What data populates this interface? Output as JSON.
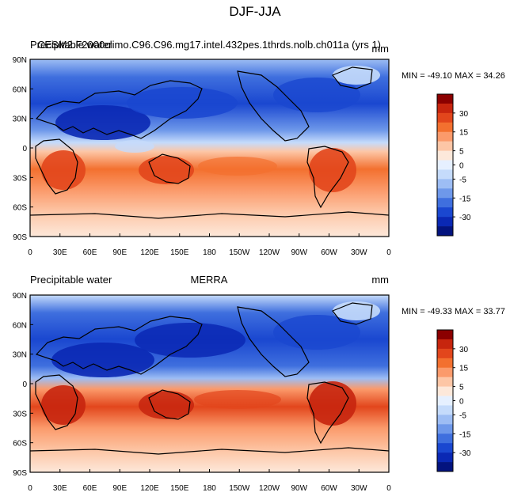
{
  "figure": {
    "title": "DJF-JJA",
    "variable_label": "Precipitable water"
  },
  "chart_data": [
    {
      "type": "heatmap",
      "panel": "top",
      "left_label": "Precipitable water",
      "center_label": "CESM2.F2000climo.C96.C96.mg17.intel.432pes.1thrds.nolb.ch011a (yrs 1)",
      "units": "mm",
      "stats_text": "MIN = -49.10  MAX =  34.26",
      "min": -49.1,
      "max": 34.26,
      "x_ticks": [
        "0",
        "30E",
        "60E",
        "90E",
        "120E",
        "150E",
        "180",
        "150W",
        "120W",
        "90W",
        "60W",
        "30W",
        "0"
      ],
      "y_ticks": [
        "90N",
        "60N",
        "30N",
        "0",
        "30S",
        "60S",
        "90S"
      ],
      "xlim": [
        0,
        360
      ],
      "ylim": [
        -90,
        90
      ],
      "colorbar": {
        "labels": [
          "30",
          "15",
          "5",
          "0",
          "-5",
          "-15",
          "-30"
        ],
        "colors": [
          "#8b0000",
          "#c7250e",
          "#e2461c",
          "#f3702f",
          "#fb9a6b",
          "#fdc6a6",
          "#fde8da",
          "#e6f0ff",
          "#c5dbfb",
          "#9dbdf4",
          "#6e98ea",
          "#3f6fde",
          "#1a47d0",
          "#0a28b4",
          "#03137e"
        ]
      }
    },
    {
      "type": "heatmap",
      "panel": "bottom",
      "left_label": "Precipitable water",
      "center_label": "MERRA",
      "units": "mm",
      "stats_text": "MIN = -49.33  MAX =  33.77",
      "min": -49.33,
      "max": 33.77,
      "x_ticks": [
        "0",
        "30E",
        "60E",
        "90E",
        "120E",
        "150E",
        "180",
        "150W",
        "120W",
        "90W",
        "60W",
        "30W",
        "0"
      ],
      "y_ticks": [
        "90N",
        "60N",
        "30N",
        "0",
        "30S",
        "60S",
        "90S"
      ],
      "xlim": [
        0,
        360
      ],
      "ylim": [
        -90,
        90
      ],
      "colorbar": {
        "labels": [
          "30",
          "15",
          "5",
          "0",
          "-5",
          "-15",
          "-30"
        ],
        "colors": [
          "#8b0000",
          "#c7250e",
          "#e2461c",
          "#f3702f",
          "#fb9a6b",
          "#fdc6a6",
          "#fde8da",
          "#e6f0ff",
          "#c5dbfb",
          "#9dbdf4",
          "#6e98ea",
          "#3f6fde",
          "#1a47d0",
          "#0a28b4",
          "#03137e"
        ]
      }
    }
  ]
}
